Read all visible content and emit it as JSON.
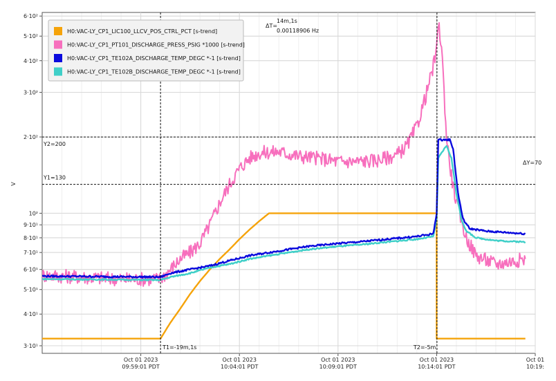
{
  "chart_data": {
    "type": "line",
    "ylabel": "V",
    "yscale": "log",
    "ylim": [
      28,
      620
    ],
    "xlim": [
      "2023-10-01T09:54:01",
      "2023-10-01T10:19:01"
    ],
    "grid": true,
    "legend_position": "top-left",
    "y_ticks": [
      {
        "value": 30,
        "label": "3·10¹"
      },
      {
        "value": 40,
        "label": "4·10¹"
      },
      {
        "value": 50,
        "label": "5·10¹"
      },
      {
        "value": 60,
        "label": "6·10¹"
      },
      {
        "value": 70,
        "label": "7·10¹"
      },
      {
        "value": 80,
        "label": "8·10¹"
      },
      {
        "value": 90,
        "label": "9·10¹"
      },
      {
        "value": 100,
        "label": "10²"
      },
      {
        "value": 200,
        "label": "2·10²"
      },
      {
        "value": 300,
        "label": "3·10²"
      },
      {
        "value": 400,
        "label": "4·10²"
      },
      {
        "value": 500,
        "label": "5·10²"
      },
      {
        "value": 600,
        "label": "6·10²"
      }
    ],
    "x_ticks": [
      {
        "t": "2023-10-01T09:59:01",
        "line1": "Oct 01 2023",
        "line2": "09:59:01 PDT"
      },
      {
        "t": "2023-10-01T10:04:01",
        "line1": "Oct 01 2023",
        "line2": "10:04:01 PDT"
      },
      {
        "t": "2023-10-01T10:09:01",
        "line1": "Oct 01 2023",
        "line2": "10:09:01 PDT"
      },
      {
        "t": "2023-10-01T10:14:01",
        "line1": "Oct 01 2023",
        "line2": "10:14:01 PDT"
      },
      {
        "t": "2023-10-01T10:19:01",
        "line1": "Oct 01",
        "line2": "10:19:"
      }
    ],
    "series": [
      {
        "name": "H0:VAC-LY_CP1_LIC100_LLCV_POS_CTRL_PCT [s-trend]",
        "color": "#f5a30a",
        "points": [
          [
            "2023-10-01T09:54:01",
            32
          ],
          [
            "2023-10-01T10:00:01",
            32
          ],
          [
            "2023-10-01T10:00:31",
            37
          ],
          [
            "2023-10-01T10:01:01",
            42
          ],
          [
            "2023-10-01T10:01:31",
            48
          ],
          [
            "2023-10-01T10:02:01",
            54
          ],
          [
            "2023-10-01T10:02:31",
            60
          ],
          [
            "2023-10-01T10:03:01",
            66
          ],
          [
            "2023-10-01T10:03:31",
            72
          ],
          [
            "2023-10-01T10:04:01",
            79
          ],
          [
            "2023-10-01T10:04:31",
            86
          ],
          [
            "2023-10-01T10:05:01",
            93
          ],
          [
            "2023-10-01T10:05:31",
            100
          ],
          [
            "2023-10-01T10:14:01",
            100
          ],
          [
            "2023-10-01T10:14:01",
            32
          ],
          [
            "2023-10-01T10:18:31",
            32
          ]
        ]
      },
      {
        "name": "H0:VAC-LY_CP1_PT101_DISCHARGE_PRESS_PSIG *1000 [s-trend]",
        "color": "#f76fbd",
        "points": [
          [
            "2023-10-01T09:54:01",
            57
          ],
          [
            "2023-10-01T09:56:01",
            56
          ],
          [
            "2023-10-01T09:58:01",
            55
          ],
          [
            "2023-10-01T10:00:01",
            55
          ],
          [
            "2023-10-01T10:00:31",
            60
          ],
          [
            "2023-10-01T10:01:01",
            66
          ],
          [
            "2023-10-01T10:01:31",
            70
          ],
          [
            "2023-10-01T10:02:01",
            76
          ],
          [
            "2023-10-01T10:02:31",
            90
          ],
          [
            "2023-10-01T10:03:01",
            110
          ],
          [
            "2023-10-01T10:03:31",
            130
          ],
          [
            "2023-10-01T10:04:01",
            150
          ],
          [
            "2023-10-01T10:04:31",
            165
          ],
          [
            "2023-10-01T10:05:01",
            173
          ],
          [
            "2023-10-01T10:06:01",
            175
          ],
          [
            "2023-10-01T10:07:01",
            168
          ],
          [
            "2023-10-01T10:08:01",
            165
          ],
          [
            "2023-10-01T10:09:01",
            160
          ],
          [
            "2023-10-01T10:10:01",
            160
          ],
          [
            "2023-10-01T10:11:01",
            162
          ],
          [
            "2023-10-01T10:12:01",
            170
          ],
          [
            "2023-10-01T10:12:31",
            185
          ],
          [
            "2023-10-01T10:13:01",
            220
          ],
          [
            "2023-10-01T10:13:31",
            300
          ],
          [
            "2023-10-01T10:13:51",
            380
          ],
          [
            "2023-10-01T10:14:01",
            440
          ],
          [
            "2023-10-01T10:14:06",
            560
          ],
          [
            "2023-10-01T10:14:16",
            460
          ],
          [
            "2023-10-01T10:14:31",
            200
          ],
          [
            "2023-10-01T10:14:46",
            140
          ],
          [
            "2023-10-01T10:15:01",
            110
          ],
          [
            "2023-10-01T10:15:31",
            80
          ],
          [
            "2023-10-01T10:16:01",
            68
          ],
          [
            "2023-10-01T10:17:01",
            63
          ],
          [
            "2023-10-01T10:18:31",
            66
          ]
        ]
      },
      {
        "name": "H0:VAC-LY_CP1_TE102A_DISCHARGE_TEMP_DEGC *-1 [s-trend]",
        "color": "#0a0add",
        "points": [
          [
            "2023-10-01T09:54:01",
            56.5
          ],
          [
            "2023-10-01T10:00:01",
            56
          ],
          [
            "2023-10-01T10:00:31",
            58
          ],
          [
            "2023-10-01T10:01:31",
            60
          ],
          [
            "2023-10-01T10:02:31",
            62
          ],
          [
            "2023-10-01T10:03:31",
            65
          ],
          [
            "2023-10-01T10:04:31",
            68
          ],
          [
            "2023-10-01T10:05:31",
            70
          ],
          [
            "2023-10-01T10:06:31",
            72
          ],
          [
            "2023-10-01T10:07:31",
            74
          ],
          [
            "2023-10-01T10:09:01",
            76
          ],
          [
            "2023-10-01T10:10:01",
            77
          ],
          [
            "2023-10-01T10:11:31",
            79
          ],
          [
            "2023-10-01T10:13:01",
            81
          ],
          [
            "2023-10-01T10:13:51",
            83
          ],
          [
            "2023-10-01T10:14:01",
            100
          ],
          [
            "2023-10-01T10:14:06",
            195
          ],
          [
            "2023-10-01T10:14:41",
            195
          ],
          [
            "2023-10-01T10:14:51",
            180
          ],
          [
            "2023-10-01T10:15:06",
            120
          ],
          [
            "2023-10-01T10:15:21",
            95
          ],
          [
            "2023-10-01T10:15:41",
            87
          ],
          [
            "2023-10-01T10:16:31",
            85
          ],
          [
            "2023-10-01T10:17:31",
            84
          ],
          [
            "2023-10-01T10:18:31",
            83
          ]
        ]
      },
      {
        "name": "H0:VAC-LY_CP1_TE102B_DISCHARGE_TEMP_DEGC *-1 [s-trend]",
        "color": "#3fcfc8",
        "points": [
          [
            "2023-10-01T09:54:01",
            55
          ],
          [
            "2023-10-01T10:00:01",
            54.5
          ],
          [
            "2023-10-01T10:00:31",
            56
          ],
          [
            "2023-10-01T10:01:31",
            58
          ],
          [
            "2023-10-01T10:02:31",
            61
          ],
          [
            "2023-10-01T10:03:31",
            63
          ],
          [
            "2023-10-01T10:04:31",
            66
          ],
          [
            "2023-10-01T10:05:31",
            68
          ],
          [
            "2023-10-01T10:06:31",
            70
          ],
          [
            "2023-10-01T10:07:31",
            72
          ],
          [
            "2023-10-01T10:09:01",
            74
          ],
          [
            "2023-10-01T10:10:01",
            75
          ],
          [
            "2023-10-01T10:11:31",
            77
          ],
          [
            "2023-10-01T10:13:01",
            79
          ],
          [
            "2023-10-01T10:13:51",
            81
          ],
          [
            "2023-10-01T10:14:01",
            95
          ],
          [
            "2023-10-01T10:14:06",
            165
          ],
          [
            "2023-10-01T10:14:31",
            185
          ],
          [
            "2023-10-01T10:14:46",
            165
          ],
          [
            "2023-10-01T10:15:01",
            120
          ],
          [
            "2023-10-01T10:15:16",
            95
          ],
          [
            "2023-10-01T10:15:31",
            85
          ],
          [
            "2023-10-01T10:16:01",
            80
          ],
          [
            "2023-10-01T10:17:01",
            78
          ],
          [
            "2023-10-01T10:18:31",
            77
          ]
        ]
      }
    ],
    "cursors": {
      "t1": {
        "t": "2023-10-01T10:00:01",
        "label": "T1=-19m,1s"
      },
      "t2": {
        "t": "2023-10-01T10:14:02",
        "label": "T2=-5m"
      },
      "y1": {
        "value": 130,
        "label": "Y1=130"
      },
      "y2": {
        "value": 200,
        "label": "Y2=200"
      },
      "delta_t_prefix": "ΔT=",
      "delta_t_line1": "14m,1s",
      "delta_t_line2": "0.00118906 Hz",
      "delta_y": "ΔY=70"
    }
  }
}
